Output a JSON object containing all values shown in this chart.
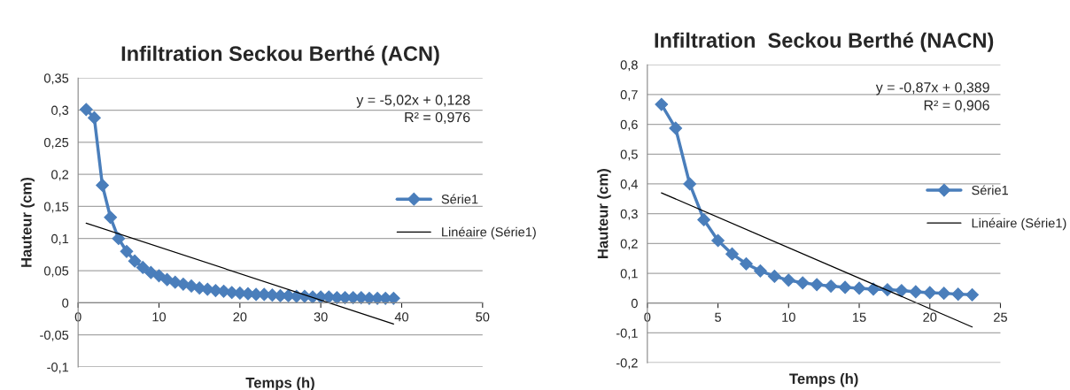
{
  "chart_data": [
    {
      "type": "line",
      "title": "Infiltration Seckou Berthé (ACN)",
      "xlabel": "Temps (h)",
      "ylabel": "Hauteur (cm)",
      "xlim": [
        0,
        50
      ],
      "xticks": [
        0,
        10,
        20,
        30,
        40,
        50
      ],
      "ylim": [
        -0.1,
        0.35
      ],
      "yticks": [
        {
          "value": -0.1,
          "label": "-0,1"
        },
        {
          "value": -0.05,
          "label": "-0,05"
        },
        0,
        {
          "value": 0.05,
          "label": "0,05"
        },
        {
          "value": 0.1,
          "label": "0,1"
        },
        {
          "value": 0.15,
          "label": "0,15"
        },
        {
          "value": 0.2,
          "label": "0,2"
        },
        {
          "value": 0.25,
          "label": "0,25"
        },
        {
          "value": 0.3,
          "label": "0,3"
        },
        {
          "value": 0.35,
          "label": "0,35"
        }
      ],
      "grid": "y",
      "legend": "right",
      "annotations": [
        "y = -5,02x + 0,128",
        "R² = 0,976"
      ],
      "series": [
        {
          "name": "Série1",
          "color": "#4a7ebb",
          "marker": "diamond",
          "x": [
            1,
            2,
            3,
            4,
            5,
            6,
            7,
            8,
            9,
            10,
            11,
            12,
            13,
            14,
            15,
            16,
            17,
            18,
            19,
            20,
            21,
            22,
            23,
            24,
            25,
            26,
            27,
            28,
            29,
            30,
            31,
            32,
            33,
            34,
            35,
            36,
            37,
            38,
            39
          ],
          "values": [
            0.301,
            0.288,
            0.183,
            0.133,
            0.1,
            0.08,
            0.065,
            0.055,
            0.047,
            0.042,
            0.036,
            0.032,
            0.029,
            0.026,
            0.023,
            0.021,
            0.019,
            0.018,
            0.016,
            0.015,
            0.014,
            0.013,
            0.013,
            0.012,
            0.011,
            0.011,
            0.01,
            0.01,
            0.009,
            0.009,
            0.009,
            0.008,
            0.008,
            0.008,
            0.008,
            0.007,
            0.007,
            0.007,
            0.007
          ]
        },
        {
          "name": "Linéaire (Série1)",
          "color": "#000000",
          "marker": "none",
          "x": [
            1,
            39
          ],
          "values": [
            0.124,
            -0.033
          ]
        }
      ]
    },
    {
      "type": "line",
      "title": "Infiltration  Seckou Berthé (NACN)",
      "xlabel": "Temps (h)",
      "ylabel": "Hauteur (cm)",
      "xlim": [
        0,
        25
      ],
      "xticks": [
        0,
        5,
        10,
        15,
        20,
        25
      ],
      "ylim": [
        -0.2,
        0.8
      ],
      "yticks": [
        {
          "value": -0.2,
          "label": "-0,2"
        },
        {
          "value": -0.1,
          "label": "-0,1"
        },
        0,
        {
          "value": 0.1,
          "label": "0,1"
        },
        {
          "value": 0.2,
          "label": "0,2"
        },
        {
          "value": 0.3,
          "label": "0,3"
        },
        {
          "value": 0.4,
          "label": "0,4"
        },
        {
          "value": 0.5,
          "label": "0,5"
        },
        {
          "value": 0.6,
          "label": "0,6"
        },
        {
          "value": 0.7,
          "label": "0,7"
        },
        {
          "value": 0.8,
          "label": "0,8"
        }
      ],
      "grid": "y",
      "legend": "right",
      "annotations": [
        "y = -0,87x + 0,389",
        "R² = 0,906"
      ],
      "series": [
        {
          "name": "Série1",
          "color": "#4a7ebb",
          "marker": "diamond",
          "x": [
            1,
            2,
            3,
            4,
            5,
            6,
            7,
            8,
            9,
            10,
            11,
            12,
            13,
            14,
            15,
            16,
            17,
            18,
            19,
            20,
            21,
            22,
            23
          ],
          "values": [
            0.667,
            0.587,
            0.4,
            0.28,
            0.21,
            0.165,
            0.132,
            0.108,
            0.09,
            0.077,
            0.068,
            0.062,
            0.057,
            0.053,
            0.05,
            0.047,
            0.045,
            0.042,
            0.038,
            0.035,
            0.033,
            0.03,
            0.028
          ]
        },
        {
          "name": "Linéaire (Série1)",
          "color": "#000000",
          "marker": "none",
          "x": [
            1,
            23
          ],
          "values": [
            0.37,
            -0.08
          ]
        }
      ]
    }
  ]
}
